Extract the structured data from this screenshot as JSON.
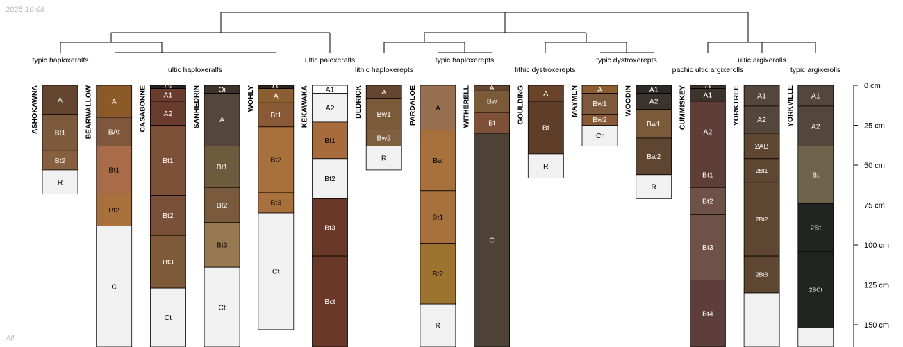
{
  "date_stamp": "2025-10-08",
  "subset_label": "All",
  "depth_axis": {
    "unit": "cm",
    "ticks": [
      {
        "depth": 0,
        "label": "0 cm"
      },
      {
        "depth": 25,
        "label": "25 cm"
      },
      {
        "depth": 50,
        "label": "50 cm"
      },
      {
        "depth": 75,
        "label": "75 cm"
      },
      {
        "depth": 100,
        "label": "100 cm"
      },
      {
        "depth": 125,
        "label": "125 cm"
      },
      {
        "depth": 150,
        "label": "150 cm"
      }
    ]
  },
  "subgroup_labels": [
    {
      "text": "typic haploxeralfs"
    },
    {
      "text": "ultic haploxeralfs"
    },
    {
      "text": "ultic palexeralfs"
    },
    {
      "text": "lithic haploxerepts"
    },
    {
      "text": "typic haploxerepts"
    },
    {
      "text": "lithic dystroxerepts"
    },
    {
      "text": "typic dystroxerepts"
    },
    {
      "text": "pachic ultic argixerolls"
    },
    {
      "text": "ultic argixerolls"
    },
    {
      "text": "typic argixerolls"
    }
  ],
  "profiles": [
    {
      "name": "ASHOKAWNA",
      "horizons": [
        {
          "name": "A",
          "top": 0,
          "bottom": 18,
          "color": "#644530"
        },
        {
          "name": "Bt1",
          "top": 18,
          "bottom": 41,
          "color": "#7e5a3c"
        },
        {
          "name": "Bt2",
          "top": 41,
          "bottom": 53,
          "color": "#86603f"
        },
        {
          "name": "R",
          "top": 53,
          "bottom": 68,
          "color": "#f1f1f1"
        }
      ]
    },
    {
      "name": "BEARWALLOW",
      "horizons": [
        {
          "name": "A",
          "top": 0,
          "bottom": 20,
          "color": "#8c5a28"
        },
        {
          "name": "BAt",
          "top": 20,
          "bottom": 38,
          "color": "#7e573c"
        },
        {
          "name": "Bt1",
          "top": 38,
          "bottom": 68,
          "color": "#a86c48"
        },
        {
          "name": "Bt2",
          "top": 68,
          "bottom": 88,
          "color": "#a8703c"
        },
        {
          "name": "C",
          "top": 88,
          "bottom": 170,
          "color": "#f1f1f1"
        }
      ]
    },
    {
      "name": "CASABONNE",
      "horizons": [
        {
          "name": "Oi",
          "top": 0,
          "bottom": 2,
          "color": "#2a2220"
        },
        {
          "name": "A1",
          "top": 2,
          "bottom": 10,
          "color": "#6a3c2e"
        },
        {
          "name": "A2",
          "top": 10,
          "bottom": 25,
          "color": "#6a3c2e"
        },
        {
          "name": "Bt1",
          "top": 25,
          "bottom": 69,
          "color": "#7e5038"
        },
        {
          "name": "Bt2",
          "top": 69,
          "bottom": 94,
          "color": "#7a5038"
        },
        {
          "name": "Bt3",
          "top": 94,
          "bottom": 127,
          "color": "#7e5a38"
        },
        {
          "name": "Ct",
          "top": 127,
          "bottom": 170,
          "color": "#f1f1f1"
        }
      ]
    },
    {
      "name": "SANHEDRIN",
      "horizons": [
        {
          "name": "Oi",
          "top": 0,
          "bottom": 5,
          "color": "#3c342c"
        },
        {
          "name": "A",
          "top": 5,
          "bottom": 38,
          "color": "#54463a"
        },
        {
          "name": "Bt1",
          "top": 38,
          "bottom": 64,
          "color": "#6e5a3c"
        },
        {
          "name": "Bt2",
          "top": 64,
          "bottom": 86,
          "color": "#7a5a3c"
        },
        {
          "name": "Bt3",
          "top": 86,
          "bottom": 114,
          "color": "#987850"
        },
        {
          "name": "Ct",
          "top": 114,
          "bottom": 170,
          "color": "#f1f1f1"
        }
      ]
    },
    {
      "name": "WOHLY",
      "horizons": [
        {
          "name": "Oi",
          "top": 0,
          "bottom": 2,
          "color": "#2e2418"
        },
        {
          "name": "A",
          "top": 2,
          "bottom": 11,
          "color": "#8a5e30"
        },
        {
          "name": "Bt1",
          "top": 11,
          "bottom": 26,
          "color": "#8a5a36"
        },
        {
          "name": "Bt2",
          "top": 26,
          "bottom": 67,
          "color": "#a8703c"
        },
        {
          "name": "Bt3",
          "top": 67,
          "bottom": 80,
          "color": "#a8703c"
        },
        {
          "name": "Ct",
          "top": 80,
          "bottom": 153,
          "color": "#f1f1f1"
        }
      ]
    },
    {
      "name": "KEKAWAKA",
      "horizons": [
        {
          "name": "A1",
          "top": 0,
          "bottom": 5,
          "color": "#ffffff"
        },
        {
          "name": "A2",
          "top": 5,
          "bottom": 23,
          "color": "#f1f1f1"
        },
        {
          "name": "Bt1",
          "top": 23,
          "bottom": 46,
          "color": "#a86c3c"
        },
        {
          "name": "Bt2",
          "top": 46,
          "bottom": 71,
          "color": "#f1f1f1"
        },
        {
          "name": "Bt3",
          "top": 71,
          "bottom": 107,
          "color": "#6a3828"
        },
        {
          "name": "Bct",
          "top": 107,
          "bottom": 170,
          "color": "#6a3828"
        }
      ]
    },
    {
      "name": "DEDRICK",
      "horizons": [
        {
          "name": "A",
          "top": 0,
          "bottom": 8,
          "color": "#644530"
        },
        {
          "name": "Bw1",
          "top": 8,
          "bottom": 28,
          "color": "#7a5a38"
        },
        {
          "name": "Bw2",
          "top": 28,
          "bottom": 38,
          "color": "#7e6040"
        },
        {
          "name": "R",
          "top": 38,
          "bottom": 53,
          "color": "#f1f1f1"
        }
      ]
    },
    {
      "name": "PARDALOE",
      "horizons": [
        {
          "name": "A",
          "top": 0,
          "bottom": 28,
          "color": "#987050"
        },
        {
          "name": "Bw",
          "top": 28,
          "bottom": 66,
          "color": "#a8703c"
        },
        {
          "name": "Bt1",
          "top": 66,
          "bottom": 99,
          "color": "#a8703c"
        },
        {
          "name": "Bt2",
          "top": 99,
          "bottom": 137,
          "color": "#9c7430"
        },
        {
          "name": "R",
          "top": 137,
          "bottom": 170,
          "color": "#f1f1f1"
        }
      ]
    },
    {
      "name": "WITHERELL",
      "horizons": [
        {
          "name": "A",
          "top": 0,
          "bottom": 3,
          "color": "#644530"
        },
        {
          "name": "Bw",
          "top": 3,
          "bottom": 17,
          "color": "#7a5a38"
        },
        {
          "name": "Bt",
          "top": 17,
          "bottom": 30,
          "color": "#7e5038"
        },
        {
          "name": "C",
          "top": 30,
          "bottom": 170,
          "color": "#4e4236"
        }
      ]
    },
    {
      "name": "GOULDING",
      "horizons": [
        {
          "name": "A",
          "top": 0,
          "bottom": 10,
          "color": "#6a442a"
        },
        {
          "name": "Bt",
          "top": 10,
          "bottom": 43,
          "color": "#5e3e28"
        },
        {
          "name": "R",
          "top": 43,
          "bottom": 58,
          "color": "#f1f1f1"
        }
      ]
    },
    {
      "name": "MAYMEN",
      "horizons": [
        {
          "name": "A",
          "top": 0,
          "bottom": 5,
          "color": "#8a5e30"
        },
        {
          "name": "Bw1",
          "top": 5,
          "bottom": 18,
          "color": "#7e5a3c"
        },
        {
          "name": "Bw2",
          "top": 18,
          "bottom": 25,
          "color": "#8a5a36"
        },
        {
          "name": "Cr",
          "top": 25,
          "bottom": 38,
          "color": "#f1f1f1"
        }
      ]
    },
    {
      "name": "WOODIN",
      "horizons": [
        {
          "name": "A1",
          "top": 0,
          "bottom": 5,
          "color": "#2e2826"
        },
        {
          "name": "A2",
          "top": 5,
          "bottom": 15,
          "color": "#3c342c"
        },
        {
          "name": "Bw1",
          "top": 15,
          "bottom": 33,
          "color": "#7a5a38"
        },
        {
          "name": "Bw2",
          "top": 33,
          "bottom": 56,
          "color": "#5e4630"
        },
        {
          "name": "R",
          "top": 56,
          "bottom": 71,
          "color": "#f1f1f1"
        }
      ]
    },
    {
      "name": "CUMMISKEY",
      "horizons": [
        {
          "name": "O",
          "top": 0,
          "bottom": 2,
          "color": "#3c342c"
        },
        {
          "name": "A1",
          "top": 2,
          "bottom": 10,
          "color": "#3c342c"
        },
        {
          "name": "A2",
          "top": 10,
          "bottom": 48,
          "color": "#5e3e36"
        },
        {
          "name": "Bt1",
          "top": 48,
          "bottom": 64,
          "color": "#5e3e36"
        },
        {
          "name": "Bt2",
          "top": 64,
          "bottom": 81,
          "color": "#6e5248"
        },
        {
          "name": "Bt3",
          "top": 81,
          "bottom": 122,
          "color": "#6e5248"
        },
        {
          "name": "Bt4",
          "top": 122,
          "bottom": 170,
          "color": "#5e3e3a"
        }
      ]
    },
    {
      "name": "YORKTREE",
      "horizons": [
        {
          "name": "A1",
          "top": 0,
          "bottom": 13,
          "color": "#54463a"
        },
        {
          "name": "A2",
          "top": 13,
          "bottom": 30,
          "color": "#54463a"
        },
        {
          "name": "2AB",
          "top": 30,
          "bottom": 46,
          "color": "#5e4630"
        },
        {
          "name": "2Bt1",
          "top": 46,
          "bottom": 61,
          "color": "#5e4630"
        },
        {
          "name": "2Bt2",
          "top": 61,
          "bottom": 107,
          "color": "#5e4630"
        },
        {
          "name": "2Bt3",
          "top": 107,
          "bottom": 130,
          "color": "#5e4630"
        },
        {
          "name": "",
          "top": 130,
          "bottom": 170,
          "color": "#f1f1f1"
        }
      ]
    },
    {
      "name": "YORKVILLE",
      "horizons": [
        {
          "name": "A1",
          "top": 0,
          "bottom": 13,
          "color": "#54463a"
        },
        {
          "name": "A2",
          "top": 13,
          "bottom": 38,
          "color": "#54463a"
        },
        {
          "name": "Bt",
          "top": 38,
          "bottom": 74,
          "color": "#6e644c"
        },
        {
          "name": "2Bt",
          "top": 74,
          "bottom": 104,
          "color": "#222420"
        },
        {
          "name": "2BCt",
          "top": 104,
          "bottom": 152,
          "color": "#222420"
        },
        {
          "name": "",
          "top": 152,
          "bottom": 170,
          "color": "#f1f1f1"
        }
      ]
    }
  ]
}
